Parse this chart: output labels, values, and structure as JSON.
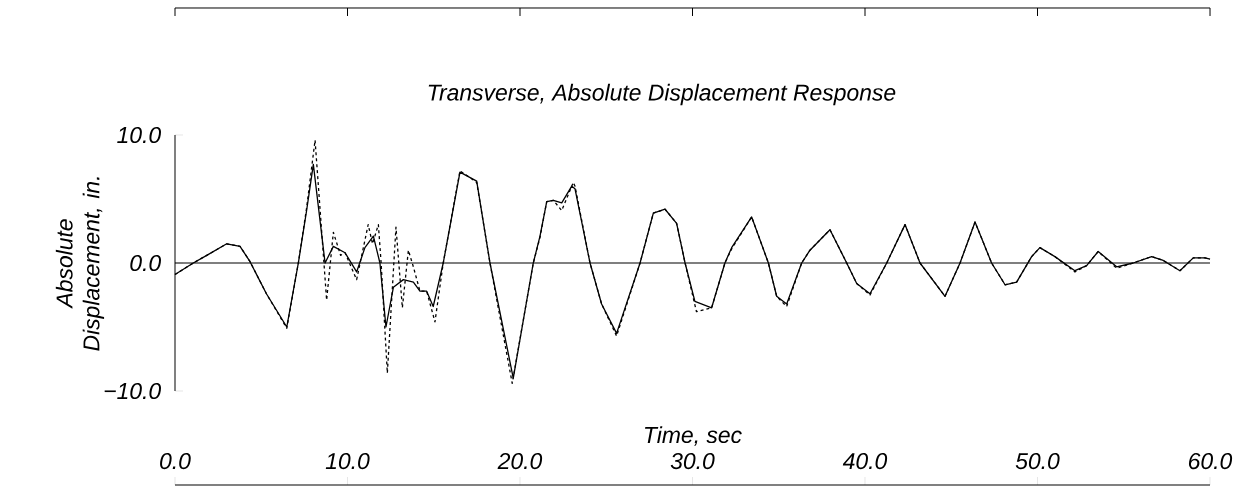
{
  "chart_data": {
    "type": "line",
    "title": "Transverse, Absolute Displacement Response",
    "xlabel": "Time, sec",
    "ylabel": "Absolute Displacement, in.",
    "xlim": [
      0,
      60
    ],
    "xticks": [
      {
        "value": 0,
        "label": "0.0"
      },
      {
        "value": 10,
        "label": "10.0"
      },
      {
        "value": 20,
        "label": "20.0"
      },
      {
        "value": 30,
        "label": "30.0"
      },
      {
        "value": 40,
        "label": "40.0"
      },
      {
        "value": 50,
        "label": "50.0"
      },
      {
        "value": 60,
        "label": "60.0"
      }
    ],
    "ylim": [
      -10,
      10
    ],
    "yticks": [
      {
        "value": -10,
        "label": "−10.0"
      },
      {
        "value": 0,
        "label": "0.0"
      },
      {
        "value": 10,
        "label": "10.0"
      }
    ],
    "ref_lines": [
      {
        "axis": "y",
        "value": 0,
        "color": "#000000",
        "line_style": "solid"
      }
    ],
    "series": [
      {
        "color": "#000000",
        "line_style": "solid",
        "x": [
          0,
          1.06,
          1.84,
          3.0,
          3.77,
          4.35,
          5.3,
          6.48,
          7.15,
          7.63,
          8.02,
          8.7,
          9.18,
          9.86,
          10.53,
          11.01,
          11.5,
          11.88,
          12.23,
          12.66,
          13.24,
          13.82,
          14.2,
          14.59,
          14.97,
          15.55,
          16.52,
          17.49,
          18.26,
          19.61,
          20.77,
          21.16,
          21.55,
          21.93,
          22.42,
          23.0,
          23.19,
          24.06,
          24.73,
          25.6,
          26.96,
          27.73,
          28.41,
          29.08,
          29.57,
          30.14,
          31.11,
          31.88,
          32.27,
          33.43,
          34.4,
          34.88,
          35.46,
          36.33,
          36.81,
          37.97,
          38.94,
          39.52,
          40.29,
          41.26,
          42.32,
          43.19,
          44.64,
          45.51,
          46.38,
          47.34,
          48.12,
          48.79,
          49.66,
          50.14,
          51.01,
          52.17,
          52.85,
          53.52,
          54.59,
          55.55,
          56.62,
          57.29,
          58.26,
          59.03,
          59.71,
          60
        ],
        "values": [
          -0.9,
          0,
          0.6,
          1.5,
          1.3,
          0.1,
          -2.4,
          -5.0,
          0,
          4.1,
          7.7,
          0,
          1.3,
          0.8,
          -0.7,
          1.2,
          2.1,
          0,
          -5.0,
          -1.9,
          -1.3,
          -1.5,
          -2.2,
          -2.2,
          -3.4,
          0,
          7.1,
          6.4,
          0,
          -9.0,
          0,
          2.1,
          4.8,
          4.9,
          4.7,
          6.0,
          5.8,
          0,
          -3.2,
          -5.5,
          0,
          3.9,
          4.2,
          3.1,
          0,
          -3.0,
          -3.5,
          0,
          1.2,
          3.6,
          0,
          -2.6,
          -3.2,
          0,
          1.0,
          2.6,
          0,
          -1.6,
          -2.4,
          0,
          3.0,
          0,
          -2.6,
          0,
          3.2,
          0,
          -1.7,
          -1.5,
          0.5,
          1.2,
          0.5,
          -0.6,
          -0.2,
          0.9,
          -0.3,
          0,
          0.5,
          0.2,
          -0.6,
          0.4,
          0.4,
          0.3
        ]
      },
      {
        "color": "#000000",
        "line_style": "dashed",
        "x": [
          0,
          1.06,
          1.84,
          3.0,
          3.77,
          4.35,
          5.3,
          6.48,
          7.15,
          7.63,
          8.12,
          8.79,
          9.18,
          9.6,
          9.86,
          10.53,
          11.2,
          11.45,
          11.79,
          11.95,
          12.31,
          12.81,
          13.18,
          13.53,
          13.82,
          14.2,
          14.59,
          15.07,
          15.55,
          16.52,
          17.49,
          18.26,
          19.55,
          20.77,
          21.16,
          21.55,
          21.93,
          22.42,
          23.09,
          23.19,
          24.06,
          24.73,
          25.6,
          26.96,
          27.73,
          28.41,
          29.08,
          29.57,
          30.23,
          31.11,
          31.88,
          32.27,
          33.43,
          34.4,
          34.88,
          35.46,
          36.33,
          36.81,
          37.97,
          38.94,
          39.52,
          40.29,
          41.26,
          42.32,
          43.19,
          44.64,
          45.51,
          46.38,
          47.34,
          48.12,
          48.79,
          49.66,
          50.14,
          51.01,
          52.17,
          52.85,
          53.52,
          54.59,
          55.55,
          56.62,
          57.29,
          58.26,
          59.03,
          59.71,
          60
        ],
        "values": [
          -0.9,
          0,
          0.6,
          1.5,
          1.3,
          0.1,
          -2.4,
          -5.1,
          0,
          4.3,
          9.6,
          -2.9,
          2.4,
          0.6,
          0.8,
          -1.3,
          3.0,
          1.5,
          3.0,
          0,
          -8.6,
          2.8,
          -3.5,
          1.0,
          -0.3,
          -2.2,
          -2.2,
          -4.6,
          0,
          7.2,
          6.3,
          0,
          -9.4,
          0,
          2.0,
          4.8,
          4.9,
          4.1,
          6.3,
          6.0,
          0,
          -3.2,
          -5.7,
          0,
          3.9,
          4.2,
          3.1,
          0,
          -3.8,
          -3.5,
          0,
          1.1,
          3.6,
          0,
          -2.6,
          -3.4,
          0,
          1.0,
          2.6,
          0,
          -1.6,
          -2.5,
          0,
          3.0,
          0,
          -2.6,
          0,
          3.2,
          0,
          -1.7,
          -1.5,
          0.5,
          1.2,
          0.5,
          -0.7,
          -0.2,
          0.9,
          -0.4,
          0,
          0.5,
          0.2,
          -0.6,
          0.4,
          0.4,
          0.3
        ]
      }
    ]
  }
}
